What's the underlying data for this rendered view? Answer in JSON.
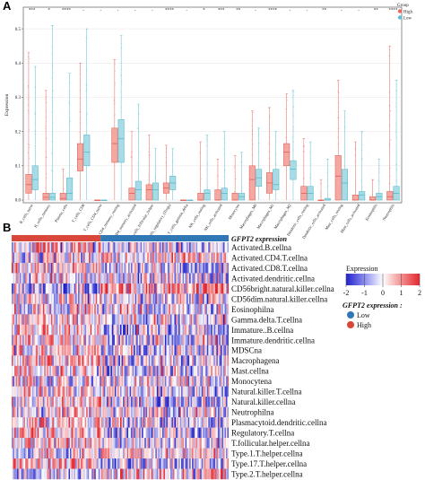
{
  "panel_a": {
    "letter": "A",
    "ylabel": "Expression",
    "legend": {
      "title": "Group",
      "items": [
        {
          "label": "High",
          "color": "#e8675e"
        },
        {
          "label": "Low",
          "color": "#5bc0d3"
        }
      ]
    }
  },
  "panel_b": {
    "letter": "B",
    "annotation_title": "GFPT2 expression",
    "expression_legend": {
      "title": "Expression",
      "ticks": [
        "-2",
        "-1",
        "0",
        "1",
        "2"
      ]
    },
    "group_legend": {
      "title": "GFPT2 expression :",
      "items": [
        {
          "label": "Low",
          "color": "#2f78b5"
        },
        {
          "label": "High",
          "color": "#d8473a"
        }
      ]
    }
  },
  "chart_data": [
    {
      "type": "box",
      "ylabel": "Expression",
      "ylim": [
        0,
        0.55
      ],
      "yticks": [
        0.0,
        0.1,
        0.2,
        0.3,
        0.4,
        0.5
      ],
      "categories": [
        "B_cells_naive",
        "B_cells_memory",
        "Plasma_cells",
        "T_cells_CD8",
        "T_cells_CD4_naive",
        "T_cells_CD4_memory_resting",
        "T_cells_CD4_memory_activated",
        "T_cells_follicular_helper",
        "T_cells_regulatory_(Tregs)",
        "T_cells_gamma_delta",
        "NK_cells_resting",
        "NK_cells_activated",
        "Monocytes",
        "Macrophages_M0",
        "Macrophages_M1",
        "Macrophages_M2",
        "Dendritic_cells_resting",
        "Dendritic_cells_activated",
        "Mast_cells_resting",
        "Mast_cells_activated",
        "Eosinophils",
        "Neutrophils"
      ],
      "significance": [
        "***",
        "*",
        "****",
        "-",
        "-",
        "-",
        "-",
        "-",
        "****",
        "-",
        "*",
        "***",
        "**",
        "-",
        "****",
        "-",
        "-",
        "**",
        "-",
        "-",
        "**",
        "****"
      ],
      "series": [
        {
          "name": "High",
          "boxes": [
            [
              0.0,
              0.02,
              0.045,
              0.075,
              0.43
            ],
            [
              0.0,
              0.0,
              0.008,
              0.02,
              0.32
            ],
            [
              0.0,
              0.0,
              0.005,
              0.02,
              0.09
            ],
            [
              0.0,
              0.085,
              0.12,
              0.165,
              0.4
            ],
            [
              0.0,
              0.0,
              0.0,
              0.0,
              0.0
            ],
            [
              0.0,
              0.11,
              0.165,
              0.21,
              0.41
            ],
            [
              0.0,
              0.0,
              0.02,
              0.035,
              0.2
            ],
            [
              0.0,
              0.0,
              0.03,
              0.045,
              0.19
            ],
            [
              0.0,
              0.02,
              0.035,
              0.05,
              0.16
            ],
            [
              0.0,
              0.0,
              0.0,
              0.0,
              0.0
            ],
            [
              0.0,
              0.0,
              0.0,
              0.02,
              0.17
            ],
            [
              0.0,
              0.0,
              0.0,
              0.03,
              0.12
            ],
            [
              0.0,
              0.0,
              0.0,
              0.02,
              0.13
            ],
            [
              0.0,
              0.0,
              0.06,
              0.1,
              0.26
            ],
            [
              0.0,
              0.02,
              0.05,
              0.08,
              0.27
            ],
            [
              0.0,
              0.1,
              0.14,
              0.165,
              0.31
            ],
            [
              0.0,
              0.0,
              0.02,
              0.04,
              0.18
            ],
            [
              0.0,
              0.0,
              0.0,
              0.0,
              0.06
            ],
            [
              0.0,
              0.0,
              0.07,
              0.13,
              0.35
            ],
            [
              0.0,
              0.0,
              0.0,
              0.015,
              0.17
            ],
            [
              0.0,
              0.0,
              0.0,
              0.01,
              0.06
            ],
            [
              0.0,
              0.0,
              0.01,
              0.025,
              0.45
            ]
          ]
        },
        {
          "name": "Low",
          "boxes": [
            [
              0.0,
              0.03,
              0.06,
              0.1,
              0.39
            ],
            [
              0.0,
              0.0,
              0.008,
              0.02,
              0.51
            ],
            [
              0.0,
              0.0,
              0.02,
              0.065,
              0.37
            ],
            [
              0.0,
              0.1,
              0.14,
              0.19,
              0.5
            ],
            [
              0.0,
              0.0,
              0.0,
              0.0,
              0.0
            ],
            [
              0.0,
              0.11,
              0.18,
              0.235,
              0.48
            ],
            [
              0.0,
              0.0,
              0.03,
              0.055,
              0.28
            ],
            [
              0.0,
              0.0,
              0.03,
              0.05,
              0.15
            ],
            [
              0.0,
              0.03,
              0.05,
              0.07,
              0.15
            ],
            [
              0.0,
              0.0,
              0.0,
              0.0,
              0.0
            ],
            [
              0.0,
              0.0,
              0.02,
              0.03,
              0.19
            ],
            [
              0.0,
              0.0,
              0.02,
              0.035,
              0.2
            ],
            [
              0.0,
              0.0,
              0.01,
              0.02,
              0.14
            ],
            [
              0.0,
              0.04,
              0.065,
              0.09,
              0.21
            ],
            [
              0.0,
              0.03,
              0.045,
              0.09,
              0.2
            ],
            [
              0.0,
              0.06,
              0.09,
              0.115,
              0.32
            ],
            [
              0.0,
              0.0,
              0.02,
              0.04,
              0.17
            ],
            [
              0.0,
              0.0,
              0.0,
              0.005,
              0.12
            ],
            [
              0.0,
              0.0,
              0.05,
              0.09,
              0.26
            ],
            [
              0.0,
              0.0,
              0.015,
              0.025,
              0.2
            ],
            [
              0.0,
              0.0,
              0.01,
              0.02,
              0.12
            ],
            [
              0.0,
              0.0,
              0.02,
              0.04,
              0.35
            ]
          ]
        }
      ]
    },
    {
      "type": "heatmap",
      "title": "GFPT2 expression",
      "rows": [
        "Activated.B.cellna",
        "Activated.CD4.T.cellna",
        "Activated.CD8.T.cellna",
        "Activated.dendritic.cellna",
        "CD56bright.natural.killer.cellna",
        "CD56dim.natural.killer.cellna",
        "Eosinophilna",
        "Gamma.delta.T.cellna",
        "Immature..B.cellna",
        "Immature.dendritic.cellna",
        "MDSCna",
        "Macrophagena",
        "Mast.cellna",
        "Monocytena",
        "Natural.killer.T.cellna",
        "Natural.killer.cellna",
        "Neutrophilna",
        "Plasmacytoid.dendritic.cellna",
        "Regulatory.T.cellna",
        "T.follicular.helper.cellna",
        "Type.1.T.helper.cellna",
        "Type.17.T.helper.cellna",
        "Type.2.T.helper.cellna"
      ],
      "groups": [
        {
          "name": "High",
          "fraction": 0.41
        },
        {
          "name": "Low",
          "fraction": 0.59
        }
      ],
      "value_range": [
        -2,
        2
      ]
    }
  ]
}
